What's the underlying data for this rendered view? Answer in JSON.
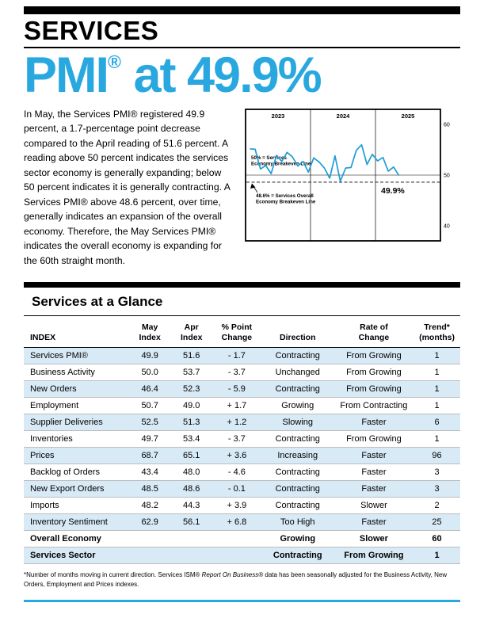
{
  "colors": {
    "accent_blue": "#29A8E0",
    "chart_line_blue": "#1E9CD7",
    "row_shade": "#D8EAF6",
    "bar_black": "#000000"
  },
  "header": {
    "kicker": "SERVICES",
    "headline": {
      "word": "PMI",
      "reg": "®",
      "rest": " at 49.9%"
    }
  },
  "intro": {
    "text": "In May, the Services PMI® registered 49.9 percent, a 1.7-percentage point decrease compared to the April reading of 51.6 percent. A reading above 50 percent indicates the services sector economy is generally expanding; below 50 percent indicates it is generally contracting. A Services PMI® above 48.6 percent, over time, generally indicates an expansion of the overall economy. Therefore, the May Services PMI® indicates the overall economy is expanding for the 60th straight month."
  },
  "chart_data": {
    "type": "line",
    "title": "",
    "x_start": "Jan 2023",
    "x_end": "May 2025",
    "x_slots": 36,
    "year_labels": [
      "2023",
      "2024",
      "2025"
    ],
    "ylim": [
      37,
      63
    ],
    "yticks": [
      60,
      50,
      40
    ],
    "grid": false,
    "legend": "none",
    "line_color": "#1E9CD7",
    "endpoint_label": "49.9%",
    "reference_lines": [
      {
        "value": 50,
        "style": "solid",
        "label": "50% = Services\nEconomy Breakeven Line"
      },
      {
        "value": 48.6,
        "style": "dashed",
        "label": "48.6% = Services Overall\nEconomy Breakeven Line"
      }
    ],
    "series": [
      {
        "name": "Services PMI",
        "values": [
          55.2,
          55.1,
          51.2,
          51.9,
          50.3,
          53.9,
          52.7,
          54.5,
          53.6,
          51.8,
          52.7,
          50.6,
          53.4,
          52.6,
          51.4,
          49.4,
          53.8,
          48.8,
          51.4,
          51.5,
          54.9,
          56.0,
          52.1,
          54.1,
          52.8,
          53.5,
          50.8,
          51.6,
          49.9
        ]
      }
    ]
  },
  "glance": {
    "title": "Services at a Glance",
    "columns": [
      "INDEX",
      "May\nIndex",
      "Apr\nIndex",
      "% Point\nChange",
      "Direction",
      "Rate of\nChange",
      "Trend*\n(months)"
    ],
    "rows": [
      {
        "index": "Services PMI®",
        "may": "49.9",
        "apr": "51.6",
        "change": "- 1.7",
        "direction": "Contracting",
        "rate": "From Growing",
        "trend": "1",
        "shaded": true,
        "bold": false
      },
      {
        "index": "Business Activity",
        "may": "50.0",
        "apr": "53.7",
        "change": "- 3.7",
        "direction": "Unchanged",
        "rate": "From Growing",
        "trend": "1",
        "shaded": false,
        "bold": false
      },
      {
        "index": "New Orders",
        "may": "46.4",
        "apr": "52.3",
        "change": "- 5.9",
        "direction": "Contracting",
        "rate": "From Growing",
        "trend": "1",
        "shaded": true,
        "bold": false
      },
      {
        "index": "Employment",
        "may": "50.7",
        "apr": "49.0",
        "change": "+ 1.7",
        "direction": "Growing",
        "rate": "From Contracting",
        "trend": "1",
        "shaded": false,
        "bold": false
      },
      {
        "index": "Supplier Deliveries",
        "may": "52.5",
        "apr": "51.3",
        "change": "+ 1.2",
        "direction": "Slowing",
        "rate": "Faster",
        "trend": "6",
        "shaded": true,
        "bold": false
      },
      {
        "index": "Inventories",
        "may": "49.7",
        "apr": "53.4",
        "change": "- 3.7",
        "direction": "Contracting",
        "rate": "From Growing",
        "trend": "1",
        "shaded": false,
        "bold": false
      },
      {
        "index": "Prices",
        "may": "68.7",
        "apr": "65.1",
        "change": "+ 3.6",
        "direction": "Increasing",
        "rate": "Faster",
        "trend": "96",
        "shaded": true,
        "bold": false
      },
      {
        "index": "Backlog of Orders",
        "may": "43.4",
        "apr": "48.0",
        "change": "- 4.6",
        "direction": "Contracting",
        "rate": "Faster",
        "trend": "3",
        "shaded": false,
        "bold": false
      },
      {
        "index": "New Export Orders",
        "may": "48.5",
        "apr": "48.6",
        "change": "- 0.1",
        "direction": "Contracting",
        "rate": "Faster",
        "trend": "3",
        "shaded": true,
        "bold": false
      },
      {
        "index": "Imports",
        "may": "48.2",
        "apr": "44.3",
        "change": "+ 3.9",
        "direction": "Contracting",
        "rate": "Slower",
        "trend": "2",
        "shaded": false,
        "bold": false
      },
      {
        "index": "Inventory Sentiment",
        "may": "62.9",
        "apr": "56.1",
        "change": "+ 6.8",
        "direction": "Too High",
        "rate": "Faster",
        "trend": "25",
        "shaded": true,
        "bold": false
      },
      {
        "index": "Overall Economy",
        "may": "",
        "apr": "",
        "change": "",
        "direction": "Growing",
        "rate": "Slower",
        "trend": "60",
        "shaded": false,
        "bold": true
      },
      {
        "index": "Services Sector",
        "may": "",
        "apr": "",
        "change": "",
        "direction": "Contracting",
        "rate": "From Growing",
        "trend": "1",
        "shaded": true,
        "bold": true
      }
    ]
  },
  "footnote": {
    "pre": "*Number of months moving in current direction. Services ISM® ",
    "italic": "Report On Business®",
    "post": " data has been seasonally adjusted for the Business Activity, New Orders, Employment and Prices indexes."
  }
}
